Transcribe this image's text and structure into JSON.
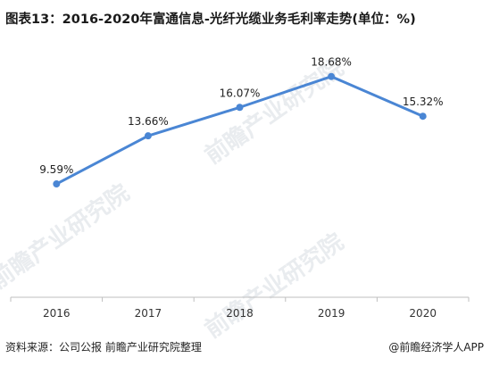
{
  "title": "图表13：2016-2020年富通信息-光纤光缆业务毛利率走势(单位：%)",
  "source_text": "资料来源：公司公报 前瞻产业研究院整理",
  "credit_text": "@前瞻经济学人APP",
  "watermark_text": "前瞻产业研究院",
  "chart_data": {
    "type": "line",
    "categories": [
      "2016",
      "2017",
      "2018",
      "2019",
      "2020"
    ],
    "series": [
      {
        "values": [
          9.59,
          13.66,
          16.07,
          18.68,
          15.32
        ],
        "labels": [
          "9.59%",
          "13.66%",
          "16.07%",
          "18.68%",
          "15.32%"
        ]
      }
    ],
    "ylim": [
      0,
      21
    ],
    "grid": false,
    "legend": "none",
    "colors": {
      "line": "#4a86d4",
      "axis": "#bfbfbf"
    }
  }
}
